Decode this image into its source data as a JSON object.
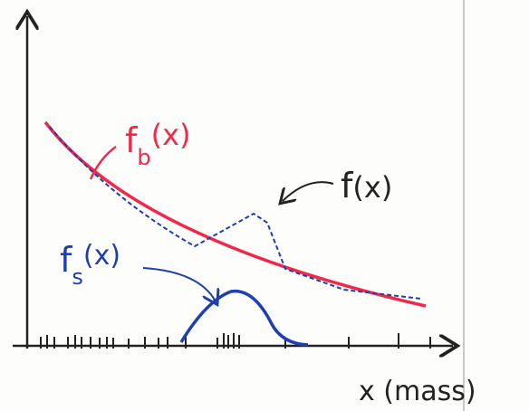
{
  "labels": {
    "background_fit": {
      "main": "f",
      "sub": "b",
      "arg": "(x)"
    },
    "total": {
      "main": "f",
      "arg": "(x)"
    },
    "signal": {
      "main": "f",
      "sub": "s",
      "arg": "(x)"
    },
    "x_axis": "x (mass)"
  }
}
